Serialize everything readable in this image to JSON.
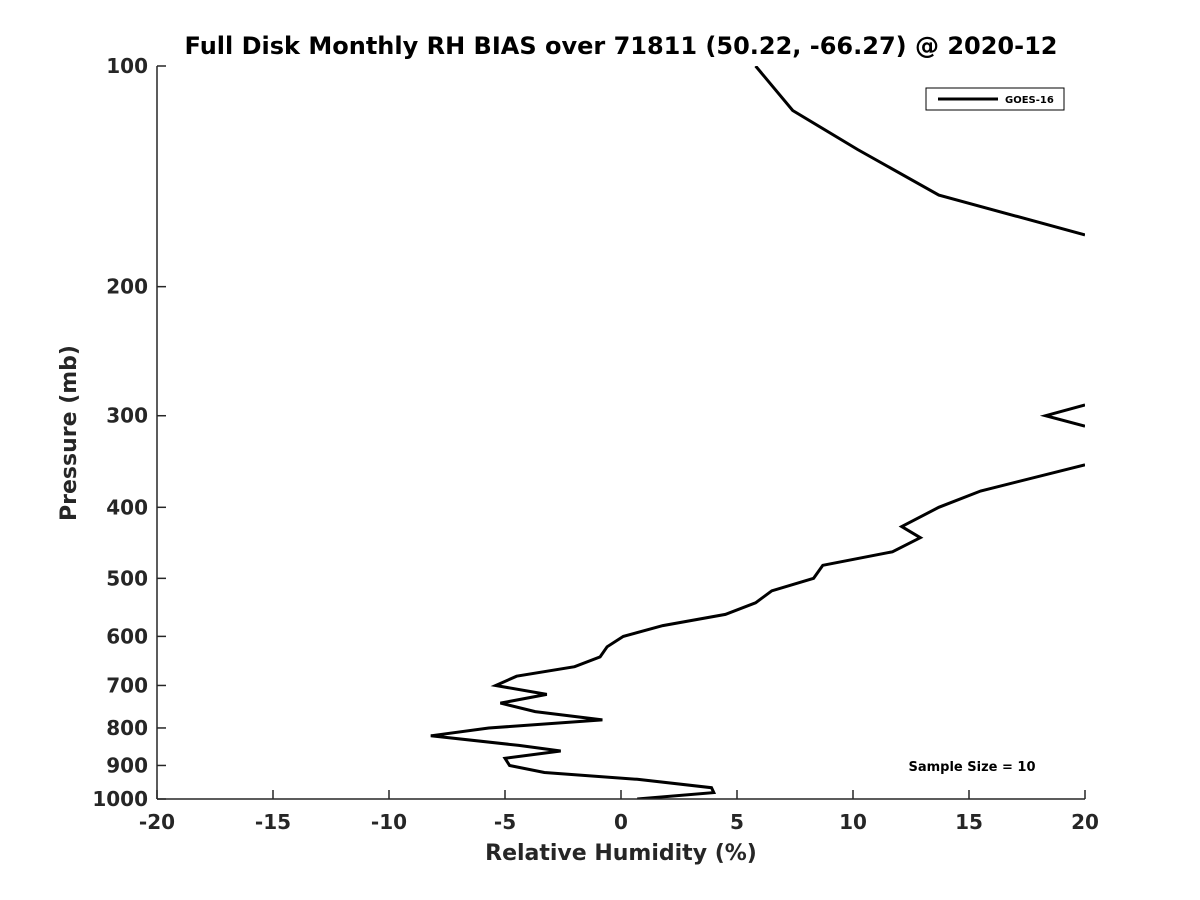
{
  "chart_data": {
    "type": "line",
    "title": "Full Disk Monthly RH BIAS over 71811 (50.22, -66.27) @ 2020-12",
    "xlabel": "Relative Humidity (%)",
    "ylabel": "Pressure (mb)",
    "xlim": [
      -20,
      20
    ],
    "ylim": [
      100,
      1000
    ],
    "y_scale": "log",
    "y_reversed": true,
    "x_ticks": [
      "-20",
      "-15",
      "-10",
      "-5",
      "0",
      "5",
      "10",
      "15",
      "20"
    ],
    "y_ticks": [
      "100",
      "200",
      "300",
      "400",
      "500",
      "600",
      "700",
      "800",
      "900",
      "1000"
    ],
    "grid": false,
    "legend_position": "top-right",
    "series": [
      {
        "name": "GOES-16",
        "color": "#000000",
        "segments": [
          [
            {
              "x": 5.8,
              "p": 100
            },
            {
              "x": 7.4,
              "p": 115
            },
            {
              "x": 10.2,
              "p": 130
            },
            {
              "x": 13.7,
              "p": 150
            },
            {
              "x": 20.0,
              "p": 170
            }
          ],
          [
            {
              "x": 20.0,
              "p": 290
            },
            {
              "x": 18.3,
              "p": 300
            },
            {
              "x": 20.0,
              "p": 310
            }
          ],
          [
            {
              "x": 20.0,
              "p": 350
            },
            {
              "x": 15.5,
              "p": 380
            },
            {
              "x": 13.7,
              "p": 400
            },
            {
              "x": 12.1,
              "p": 425
            },
            {
              "x": 12.9,
              "p": 440
            },
            {
              "x": 11.7,
              "p": 460
            },
            {
              "x": 8.7,
              "p": 480
            },
            {
              "x": 8.3,
              "p": 500
            },
            {
              "x": 6.5,
              "p": 520
            },
            {
              "x": 5.8,
              "p": 540
            },
            {
              "x": 4.5,
              "p": 560
            },
            {
              "x": 1.8,
              "p": 580
            },
            {
              "x": 0.1,
              "p": 600
            },
            {
              "x": -0.6,
              "p": 620
            },
            {
              "x": -0.9,
              "p": 640
            },
            {
              "x": -2.0,
              "p": 660
            },
            {
              "x": -4.5,
              "p": 680
            },
            {
              "x": -5.4,
              "p": 700
            },
            {
              "x": -3.2,
              "p": 720
            },
            {
              "x": -5.2,
              "p": 740
            },
            {
              "x": -3.7,
              "p": 760
            },
            {
              "x": -0.8,
              "p": 780
            },
            {
              "x": -5.7,
              "p": 800
            },
            {
              "x": -8.2,
              "p": 820
            },
            {
              "x": -4.4,
              "p": 845
            },
            {
              "x": -2.6,
              "p": 860
            },
            {
              "x": -5.0,
              "p": 880
            },
            {
              "x": -4.8,
              "p": 900
            },
            {
              "x": -3.3,
              "p": 920
            },
            {
              "x": 0.7,
              "p": 940
            },
            {
              "x": 3.9,
              "p": 965
            },
            {
              "x": 4.0,
              "p": 980
            },
            {
              "x": 0.7,
              "p": 1000
            }
          ]
        ]
      }
    ],
    "annotation": "Sample Size = 10"
  }
}
